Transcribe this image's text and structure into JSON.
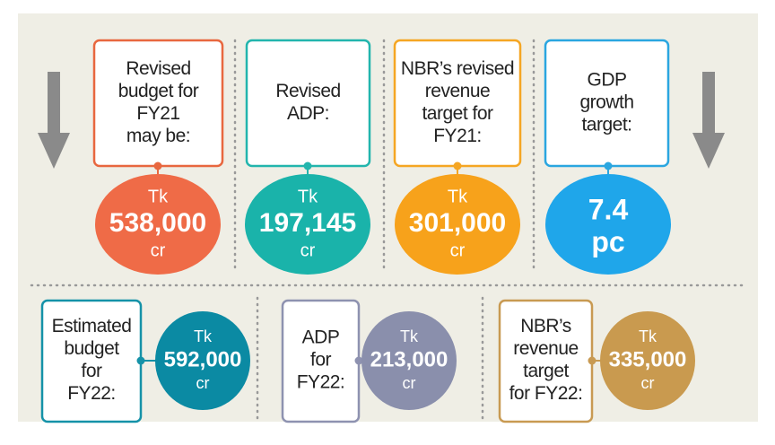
{
  "top": {
    "items": [
      {
        "label": [
          "Revised",
          "budget for",
          "FY21",
          "may be:"
        ],
        "prefix": "Tk",
        "value": "538,000",
        "unit": "cr"
      },
      {
        "label": [
          "Revised",
          "ADP:"
        ],
        "prefix": "Tk",
        "value": "197,145",
        "unit": "cr"
      },
      {
        "label": [
          "NBR’s revised",
          "revenue",
          "target for",
          "FY21:"
        ],
        "prefix": "Tk",
        "value": "301,000",
        "unit": "cr"
      },
      {
        "label": [
          "GDP",
          "growth",
          "target:"
        ],
        "value": "7.4",
        "unit": "pc"
      }
    ]
  },
  "bottom": {
    "items": [
      {
        "label": [
          "Estimated",
          "budget",
          "for",
          "FY22:"
        ],
        "prefix": "Tk",
        "value": "592,000",
        "unit": "cr"
      },
      {
        "label": [
          "ADP",
          "for",
          "FY22:"
        ],
        "prefix": "Tk",
        "value": "213,000",
        "unit": "cr"
      },
      {
        "label": [
          "NBR’s",
          "revenue",
          "target",
          "for FY22:"
        ],
        "prefix": "Tk",
        "value": "335,000",
        "unit": "cr"
      }
    ]
  }
}
